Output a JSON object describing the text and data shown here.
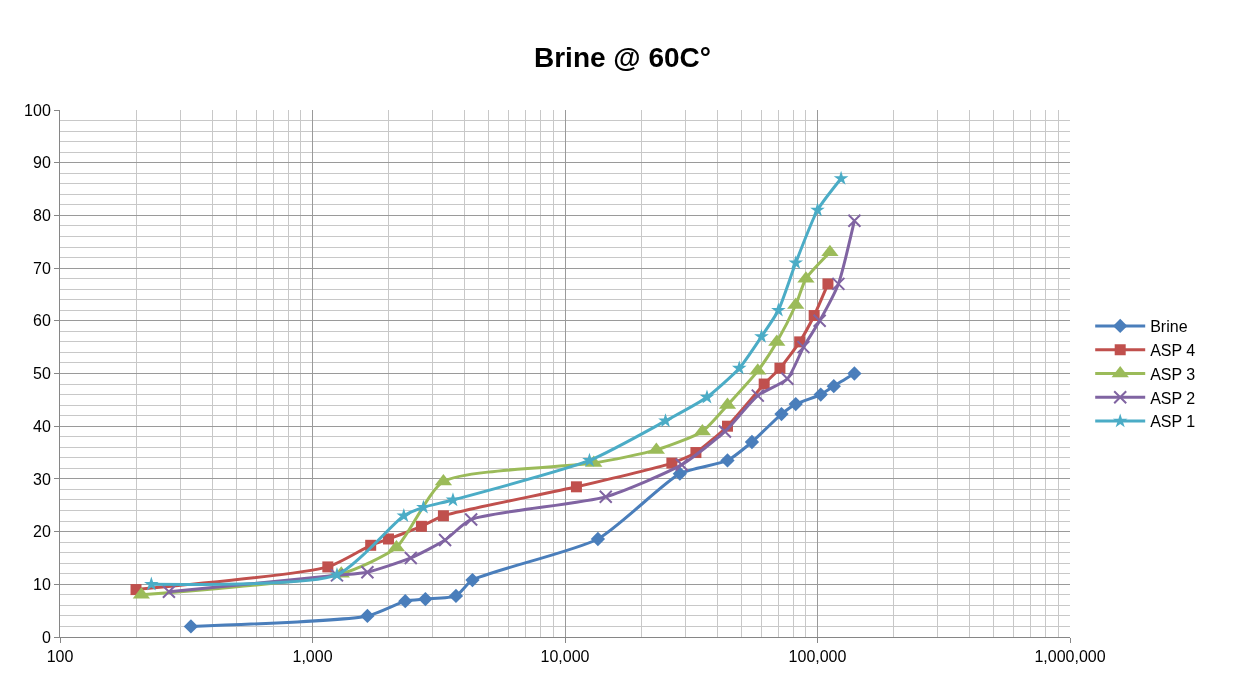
{
  "chart_data": {
    "type": "line",
    "title": "Brine @ 60C°",
    "log": "x",
    "grid": true,
    "legend": "right",
    "xlim": [
      100,
      1000000
    ],
    "xticks": [
      {
        "value": 100,
        "label": "100"
      },
      {
        "value": 1000,
        "label": "1,000"
      },
      {
        "value": 10000,
        "label": "10,000"
      },
      {
        "value": 100000,
        "label": "100,000"
      },
      {
        "value": 1000000,
        "label": "1,000,000"
      }
    ],
    "ylim": [
      0,
      100
    ],
    "yticks": [
      0,
      10,
      20,
      30,
      40,
      50,
      60,
      70,
      80,
      90,
      100
    ],
    "series": [
      {
        "name": "Brine",
        "color": "#4a7ebb",
        "marker": "diamond",
        "x": [
          330,
          1650,
          2330,
          2800,
          3700,
          4300,
          13500,
          28500,
          44000,
          55000,
          72000,
          82000,
          103000,
          116000,
          140000
        ],
        "values": [
          2,
          4,
          6.8,
          7.2,
          7.8,
          10.8,
          18.6,
          31,
          33.5,
          37,
          42.3,
          44.2,
          46,
          47.6,
          50
        ]
      },
      {
        "name": "ASP 4",
        "color": "#c0504d",
        "marker": "square",
        "x": [
          200,
          1150,
          1700,
          2000,
          2700,
          3300,
          11100,
          26500,
          33000,
          44000,
          61500,
          71000,
          85000,
          97000,
          110000
        ],
        "values": [
          9,
          13.3,
          17.4,
          18.6,
          21,
          23,
          28.5,
          33,
          35,
          40,
          48,
          51,
          56,
          61,
          67
        ]
      },
      {
        "name": "ASP 3",
        "color": "#9bbb59",
        "marker": "triangle",
        "x": [
          210,
          1300,
          2150,
          3300,
          13000,
          23000,
          35000,
          44000,
          58000,
          69000,
          82000,
          90000,
          112000
        ],
        "values": [
          8,
          12,
          17,
          29.5,
          33,
          35.5,
          39,
          44,
          50.5,
          56,
          63,
          68,
          73
        ]
      },
      {
        "name": "ASP 2",
        "color": "#8064a2",
        "marker": "cross",
        "x": [
          270,
          1250,
          1650,
          2450,
          3350,
          4250,
          14500,
          29000,
          43000,
          58000,
          76000,
          88000,
          102000,
          121000,
          140000
        ],
        "values": [
          8.6,
          11.7,
          12.3,
          15,
          18.4,
          22.3,
          26.6,
          32.7,
          39,
          45.8,
          49,
          55,
          60,
          67,
          79
        ]
      },
      {
        "name": "ASP 1",
        "color": "#4bacc6",
        "marker": "star",
        "x": [
          230,
          1250,
          2300,
          2750,
          3600,
          12500,
          25000,
          36500,
          49000,
          60000,
          70000,
          82000,
          100000,
          124000
        ],
        "values": [
          10,
          11.8,
          23,
          24.6,
          26,
          33.5,
          41,
          45.5,
          51,
          57,
          62,
          71,
          81,
          87
        ]
      }
    ]
  }
}
